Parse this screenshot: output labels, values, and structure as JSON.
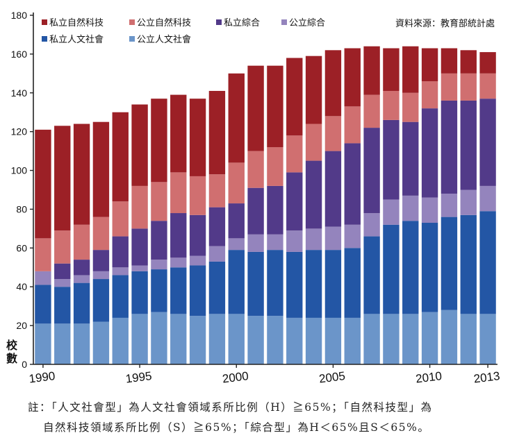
{
  "chart_data": {
    "type": "bar",
    "stacked": true,
    "categories": [
      "1990",
      "1991",
      "1992",
      "1993",
      "1994",
      "1995",
      "1996",
      "1997",
      "1998",
      "1999",
      "2000",
      "2001",
      "2002",
      "2003",
      "2004",
      "2005",
      "2006",
      "2007",
      "2008",
      "2009",
      "2010",
      "2011",
      "2012",
      "2013"
    ],
    "x_tick_labels": [
      "1990",
      "1995",
      "2000",
      "2005",
      "2010",
      "2013"
    ],
    "ylabel": "校數",
    "ylim": [
      0,
      180
    ],
    "yticks": [
      0,
      20,
      40,
      60,
      80,
      100,
      120,
      140,
      160,
      180
    ],
    "grid": false,
    "legend_position": "top-left",
    "source": "資料來源：教育部統計處",
    "series": [
      {
        "name": "公立人文社會",
        "color": "#6b95c9",
        "values": [
          21,
          21,
          21,
          22,
          24,
          26,
          27,
          26,
          25,
          26,
          26,
          25,
          25,
          24,
          24,
          24,
          24,
          26,
          26,
          26,
          27,
          28,
          26,
          26
        ]
      },
      {
        "name": "私立人文社會",
        "color": "#2356a5",
        "values": [
          20,
          19,
          21,
          22,
          22,
          22,
          22,
          24,
          26,
          27,
          33,
          33,
          34,
          34,
          35,
          35,
          36,
          40,
          46,
          48,
          46,
          48,
          51,
          53
        ]
      },
      {
        "name": "公立綜合",
        "color": "#9484bd",
        "values": [
          7,
          4,
          4,
          4,
          4,
          3,
          5,
          5,
          5,
          8,
          6,
          9,
          8,
          11,
          11,
          12,
          12,
          12,
          13,
          13,
          13,
          12,
          13,
          13
        ]
      },
      {
        "name": "私立綜合",
        "color": "#523a89",
        "values": [
          0,
          8,
          8,
          11,
          16,
          19,
          20,
          23,
          21,
          20,
          18,
          24,
          25,
          30,
          35,
          39,
          42,
          44,
          41,
          38,
          46,
          48,
          46,
          45
        ]
      },
      {
        "name": "公立自然科技",
        "color": "#d06f70",
        "values": [
          17,
          17,
          18,
          17,
          18,
          22,
          20,
          21,
          20,
          17,
          21,
          19,
          20,
          19,
          19,
          18,
          19,
          17,
          15,
          15,
          14,
          14,
          14,
          13
        ]
      },
      {
        "name": "私立自然科技",
        "color": "#9c2026",
        "values": [
          56,
          54,
          52,
          49,
          46,
          42,
          43,
          40,
          40,
          43,
          46,
          44,
          42,
          40,
          35,
          34,
          30,
          25,
          22,
          24,
          17,
          13,
          12,
          11
        ]
      }
    ]
  },
  "legend": {
    "row1": [
      "私立自然科技",
      "公立自然科技",
      "私立綜合",
      "公立綜合"
    ],
    "row2": [
      "私立人文社會",
      "公立人文社會"
    ]
  },
  "notes": {
    "line1": "註：「人文社會型」為人文社會領域系所比例（H）≧65%；「自然科技型」為",
    "line2": "自然科技領域系所比例（S）≧65%；「綜合型」為H＜65%且S＜65%。"
  }
}
